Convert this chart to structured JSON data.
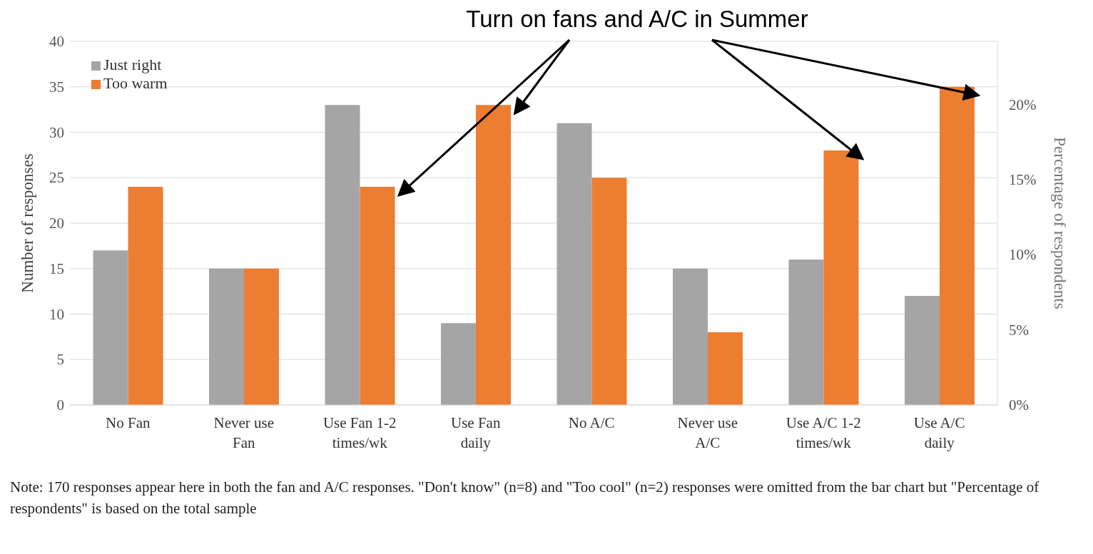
{
  "chart_data": {
    "type": "bar",
    "categories": [
      "No Fan",
      "Never use Fan",
      "Use Fan 1-2 times/wk",
      "Use Fan daily",
      "No A/C",
      "Never use A/C",
      "Use A/C 1-2 times/wk",
      "Use A/C daily"
    ],
    "series": [
      {
        "name": "Just right",
        "color": "#a5a5a5",
        "values": [
          17,
          15,
          33,
          9,
          31,
          15,
          16,
          12
        ]
      },
      {
        "name": "Too warm",
        "color": "#ed7d31",
        "values": [
          24,
          15,
          24,
          33,
          25,
          8,
          28,
          35
        ]
      }
    ],
    "ylabel": "Number of responses",
    "y2label": "Percentage of respondents",
    "ylim": [
      0,
      40
    ],
    "yticks": [
      0,
      5,
      10,
      15,
      20,
      25,
      30,
      35,
      40
    ],
    "y2lim": [
      0,
      24.2
    ],
    "y2ticks": [
      {
        "value": 0,
        "label": "0%"
      },
      {
        "value": 5,
        "label": "5%"
      },
      {
        "value": 10,
        "label": "10%"
      },
      {
        "value": 15,
        "label": "15%"
      },
      {
        "value": 20,
        "label": "20%"
      }
    ],
    "grid": "y",
    "legend": "top left",
    "annotations": [
      "Turn on fans and A/C in Summer",
      "Note: 170 responses appear here in both the fan and A/C responses. \"Don't know\" (n=8) and \"Too cool\" (n=2) responses were omitted from the bar chart but \"Percentage of respondents\" is based on the total sample"
    ]
  }
}
